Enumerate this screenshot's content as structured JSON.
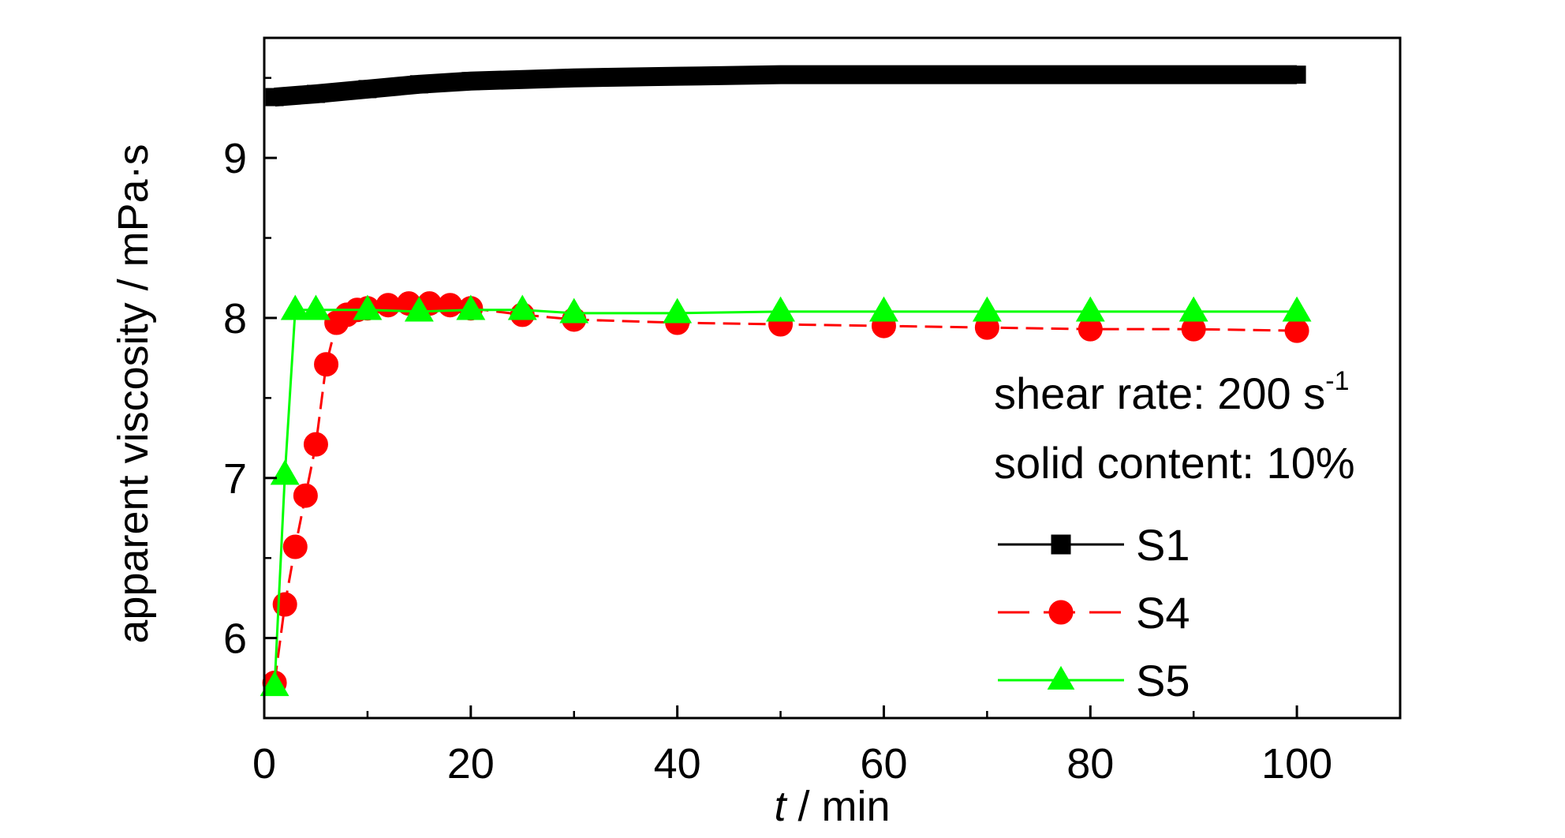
{
  "chart_data": {
    "type": "line",
    "xlabel": "t / min",
    "xlabel_italic": "t",
    "xlabel_rest": " / min",
    "ylabel": "apparent viscosity / mPa·s",
    "xlim": [
      0,
      110
    ],
    "ylim": [
      5.5,
      9.75
    ],
    "x_ticks": [
      0,
      20,
      40,
      60,
      80,
      100
    ],
    "y_ticks": [
      6,
      7,
      8,
      9
    ],
    "grid": false,
    "legend_position": "lower-right",
    "annotations": {
      "shear_rate_text": "shear rate: 200 s",
      "shear_rate_sup": "-1",
      "solid_content": "solid content: 10%"
    },
    "series": [
      {
        "name": "S1",
        "color": "#000000",
        "marker": "square",
        "dashed": false,
        "x": [
          1,
          5,
          10,
          15,
          20,
          30,
          40,
          50,
          60,
          70,
          80,
          90,
          100
        ],
        "y": [
          9.38,
          9.4,
          9.43,
          9.46,
          9.48,
          9.5,
          9.51,
          9.52,
          9.52,
          9.52,
          9.52,
          9.52,
          9.52
        ]
      },
      {
        "name": "S4",
        "color": "#ff0000",
        "marker": "circle",
        "dashed": true,
        "x": [
          1,
          2,
          3,
          4,
          5,
          6,
          7,
          8,
          9,
          10,
          12,
          14,
          16,
          18,
          20,
          25,
          30,
          40,
          50,
          60,
          70,
          80,
          90,
          100
        ],
        "y": [
          5.72,
          6.21,
          6.57,
          6.89,
          7.21,
          7.71,
          7.97,
          8.02,
          8.05,
          8.06,
          8.08,
          8.09,
          8.09,
          8.08,
          8.06,
          8.02,
          7.99,
          7.97,
          7.96,
          7.95,
          7.94,
          7.93,
          7.93,
          7.92
        ]
      },
      {
        "name": "S5",
        "color": "#00ff00",
        "marker": "triangle",
        "dashed": false,
        "x": [
          1,
          2,
          3,
          5,
          10,
          15,
          20,
          25,
          30,
          40,
          50,
          60,
          70,
          80,
          90,
          100
        ],
        "y": [
          5.7,
          7.02,
          8.05,
          8.05,
          8.05,
          8.04,
          8.05,
          8.05,
          8.03,
          8.03,
          8.04,
          8.04,
          8.04,
          8.04,
          8.04,
          8.04
        ]
      }
    ]
  }
}
